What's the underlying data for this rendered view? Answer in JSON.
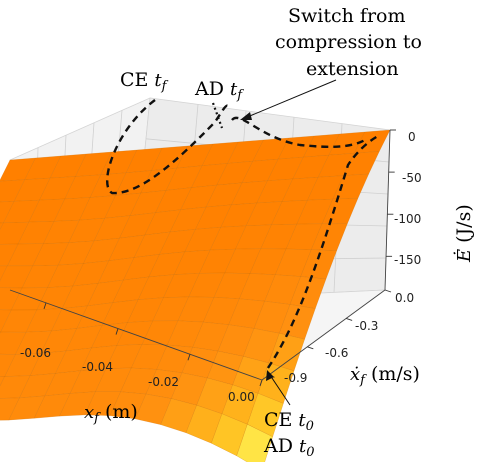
{
  "chart_data": {
    "type": "surface",
    "x_label": {
      "sym": "x",
      "sub": "f",
      "unit": "(m)"
    },
    "y_label": {
      "sym": "ẋ",
      "sub": "f",
      "unit": "(m/s)"
    },
    "z_label": {
      "sym": "Ė",
      "unit": "(J/s)"
    },
    "x_ticks": [
      "-0.06",
      "-0.04",
      "-0.02",
      "0.00"
    ],
    "x_tick_values": [
      -0.06,
      -0.04,
      -0.02,
      0.0
    ],
    "y_ticks": [
      "0.0",
      "-0.3",
      "-0.6",
      "-0.9"
    ],
    "y_tick_values": [
      0.0,
      -0.3,
      -0.6,
      -0.9
    ],
    "z_ticks": [
      "0",
      "-50",
      "-100",
      "-150"
    ],
    "z_tick_values": [
      0,
      -50,
      -100,
      -150
    ],
    "xlim": [
      -0.07,
      0.0
    ],
    "ylim": [
      -0.95,
      0.0
    ],
    "zlim": [
      -190,
      0
    ],
    "colormap": [
      "#FFFF60",
      "#FFC020",
      "#FF9010",
      "#FF8000"
    ],
    "annotations": {
      "switch_line1": "Switch from",
      "switch_line2": "compression to",
      "switch_line3": "extension",
      "ce_tf": {
        "text": "CE",
        "sym": "t",
        "sub": "f"
      },
      "ad_tf": {
        "text": "AD",
        "sym": "t",
        "sub": "f"
      },
      "ce_t0": {
        "text": "CE",
        "sym": "t",
        "sub": "0"
      },
      "ad_t0": {
        "text": "AD",
        "sym": "t",
        "sub": "0"
      }
    }
  }
}
